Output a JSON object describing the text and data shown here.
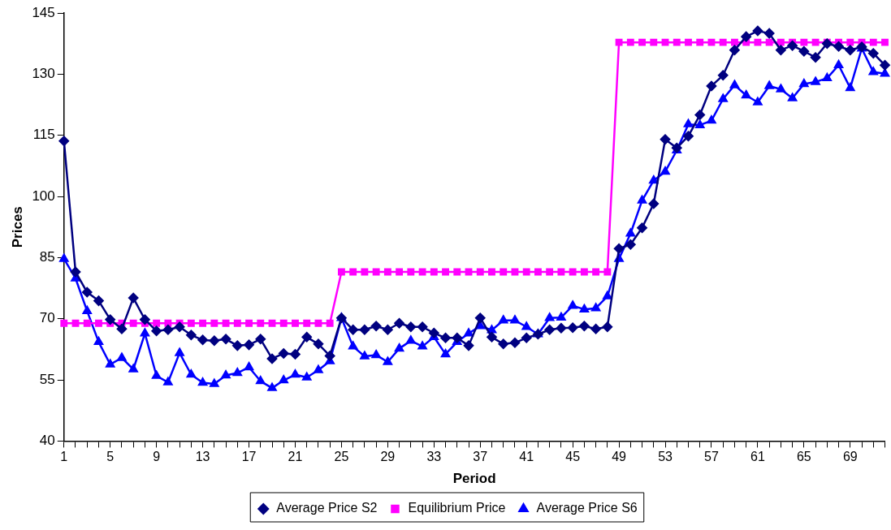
{
  "chart_data": {
    "type": "line",
    "xlabel": "Period",
    "ylabel": "Prices",
    "categories": [
      "1",
      null,
      null,
      null,
      "5",
      null,
      null,
      null,
      "9",
      null,
      null,
      null,
      "13",
      null,
      null,
      null,
      "17",
      null,
      null,
      null,
      "21",
      null,
      null,
      null,
      "25",
      null,
      null,
      null,
      "29",
      null,
      null,
      null,
      "33",
      null,
      null,
      null,
      "37",
      null,
      null,
      null,
      "41",
      null,
      null,
      null,
      "45",
      null,
      null,
      null,
      "49",
      null,
      null,
      null,
      "53",
      null,
      null,
      null,
      "57",
      null,
      null,
      null,
      "61",
      null,
      null,
      null,
      "65",
      null,
      null,
      null,
      "69",
      null,
      null,
      null
    ],
    "ylim": [
      40,
      145
    ],
    "yticks": [
      40,
      55,
      70,
      85,
      100,
      115,
      130,
      145
    ],
    "grid": false,
    "legend": "bottom",
    "line_style": "solid",
    "series": [
      {
        "name": "Average Price S2",
        "color": "#000080",
        "marker": "diamond",
        "values": [
          113.6,
          81.5,
          76.5,
          74.4,
          69.8,
          67.5,
          75.1,
          69.8,
          67.0,
          67.3,
          68.0,
          66.0,
          64.8,
          64.6,
          65.0,
          63.4,
          63.6,
          65.0,
          60.2,
          61.5,
          61.3,
          65.5,
          63.8,
          60.9,
          70.2,
          67.3,
          67.3,
          68.2,
          67.3,
          68.9,
          68.0,
          68.0,
          66.5,
          65.3,
          65.3,
          63.4,
          70.2,
          65.5,
          63.8,
          64.1,
          65.3,
          66.2,
          67.3,
          67.7,
          67.8,
          68.2,
          67.5,
          68.0,
          87.2,
          88.2,
          92.3,
          98.2,
          114.0,
          111.9,
          114.8,
          120.0,
          127.1,
          129.7,
          135.9,
          139.2,
          140.6,
          140.0,
          135.9,
          137.0,
          135.6,
          134.1,
          137.5,
          136.8,
          135.9,
          136.7,
          135.1,
          132.2
        ]
      },
      {
        "name": "Equilibrium Price",
        "color": "#ff00ff",
        "marker": "square",
        "values": [
          68.9,
          68.9,
          68.9,
          68.9,
          68.9,
          68.9,
          68.9,
          68.9,
          68.9,
          68.9,
          68.9,
          68.9,
          68.9,
          68.9,
          68.9,
          68.9,
          68.9,
          68.9,
          68.9,
          68.9,
          68.9,
          68.9,
          68.9,
          68.9,
          81.5,
          81.5,
          81.5,
          81.5,
          81.5,
          81.5,
          81.5,
          81.5,
          81.5,
          81.5,
          81.5,
          81.5,
          81.5,
          81.5,
          81.5,
          81.5,
          81.5,
          81.5,
          81.5,
          81.5,
          81.5,
          81.5,
          81.5,
          81.5,
          137.8,
          137.8,
          137.8,
          137.8,
          137.8,
          137.8,
          137.8,
          137.8,
          137.8,
          137.8,
          137.8,
          137.8,
          137.8,
          137.8,
          137.8,
          137.8,
          137.8,
          137.8,
          137.8,
          137.8,
          137.8,
          137.8,
          137.8,
          137.8
        ]
      },
      {
        "name": "Average Price S6",
        "color": "#0000ff",
        "marker": "triangle",
        "values": [
          84.7,
          79.9,
          71.9,
          64.3,
          58.8,
          60.4,
          57.6,
          66.4,
          56.0,
          54.4,
          61.6,
          56.3,
          54.3,
          54.0,
          56.1,
          56.7,
          58.1,
          54.7,
          53.0,
          54.9,
          56.3,
          55.6,
          57.4,
          59.6,
          70.2,
          63.2,
          60.8,
          61.1,
          59.4,
          62.7,
          64.6,
          63.2,
          65.5,
          61.3,
          64.3,
          66.4,
          68.2,
          67.2,
          69.6,
          69.6,
          68.0,
          66.2,
          70.2,
          70.3,
          73.2,
          72.3,
          72.6,
          75.5,
          84.7,
          90.9,
          99.0,
          103.9,
          106.1,
          111.3,
          117.7,
          117.5,
          118.6,
          123.9,
          127.3,
          124.8,
          123.1,
          127.1,
          126.3,
          124.1,
          127.6,
          128.1,
          129.0,
          132.2,
          126.6,
          136.3,
          130.5,
          130.1
        ]
      }
    ]
  }
}
